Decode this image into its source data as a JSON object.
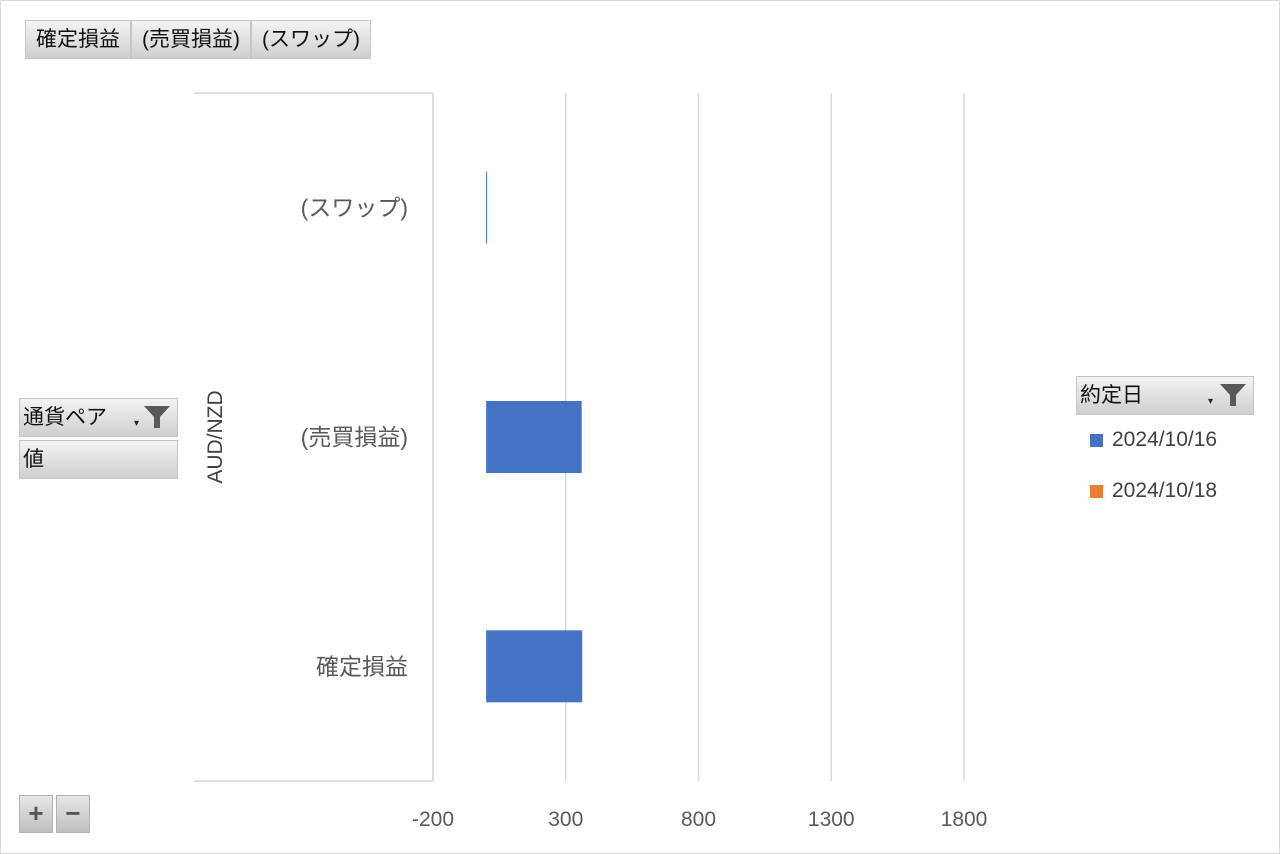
{
  "value_tabs": [
    "確定損益",
    "(売買損益)",
    "(スワップ)"
  ],
  "row_fields": {
    "currency_pair_label": "通貨ペア",
    "values_label": "値"
  },
  "legend": {
    "title": "約定日",
    "items": [
      {
        "label": "2024/10/16",
        "color": "#4472c4"
      },
      {
        "label": "2024/10/18",
        "color": "#ed7d31"
      }
    ]
  },
  "zoom": {
    "plus": "+",
    "minus": "−"
  },
  "chart_data": {
    "type": "bar",
    "orientation": "horizontal",
    "group_label": "AUD/NZD",
    "categories": [
      "(スワップ)",
      "(売買損益)",
      "確定損益"
    ],
    "series": [
      {
        "name": "2024/10/16",
        "color": "#4472c4",
        "values": [
          2,
          360,
          362
        ]
      },
      {
        "name": "2024/10/18",
        "color": "#ed7d31",
        "values": [
          0,
          0,
          0
        ]
      }
    ],
    "x_ticks": [
      -200,
      300,
      800,
      1300,
      1800
    ],
    "xlim": [
      -200,
      2050
    ],
    "grid": true
  }
}
